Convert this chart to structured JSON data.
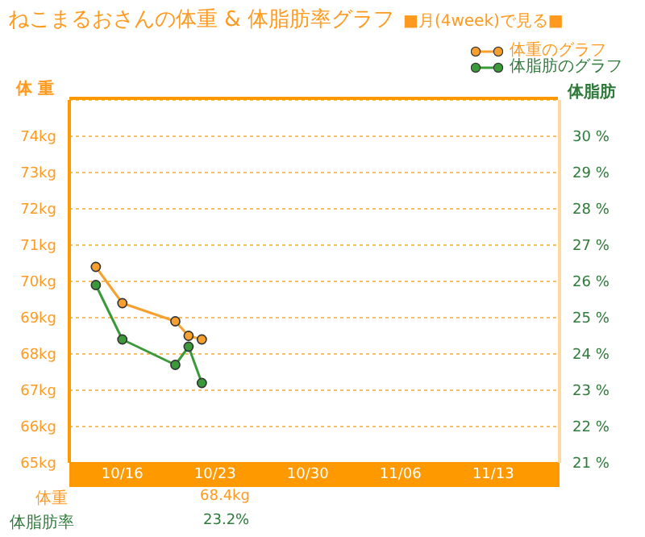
{
  "chart_data": {
    "type": "line",
    "title": "ねこまるおさんの体重 & 体脂肪率グラフ",
    "ylabel": "体 重",
    "y2label": "体脂肪",
    "x": [
      "--10-14",
      "--10-16",
      "--10-20",
      "--10-21",
      "--10-22"
    ],
    "series": [
      {
        "name": "体重のグラフ",
        "color": "#f7a030",
        "values": [
          70.4,
          69.4,
          68.9,
          68.5,
          68.4
        ]
      },
      {
        "name": "体脂肪のグラフ",
        "color": "#3a9a3a",
        "axis": "y2",
        "values": [
          25.9,
          24.4,
          23.7,
          24.2,
          23.2
        ]
      }
    ],
    "xlim": [
      "--10-12",
      "--11-18"
    ],
    "xticks": [
      {
        "value": "--10-16",
        "label": "10/16"
      },
      {
        "value": "--10-23",
        "label": "10/23"
      },
      {
        "value": "--10-30",
        "label": "10/30"
      },
      {
        "value": "--11-06",
        "label": "11/06"
      },
      {
        "value": "--11-13",
        "label": "11/13"
      }
    ],
    "ylim": [
      65,
      75
    ],
    "yticks": [
      {
        "value": 65,
        "label": "65kg"
      },
      {
        "value": 66,
        "label": "66kg"
      },
      {
        "value": 67,
        "label": "67kg"
      },
      {
        "value": 68,
        "label": "68kg"
      },
      {
        "value": 69,
        "label": "69kg"
      },
      {
        "value": 70,
        "label": "70kg"
      },
      {
        "value": 71,
        "label": "71kg"
      },
      {
        "value": 72,
        "label": "72kg"
      },
      {
        "value": 73,
        "label": "73kg"
      },
      {
        "value": 74,
        "label": "74kg"
      }
    ],
    "y2lim": [
      21,
      31
    ],
    "y2ticks": [
      {
        "value": 21,
        "label": "21 %"
      },
      {
        "value": 22,
        "label": "22 %"
      },
      {
        "value": 23,
        "label": "23 %"
      },
      {
        "value": 24,
        "label": "24 %"
      },
      {
        "value": 25,
        "label": "25 %"
      },
      {
        "value": 26,
        "label": "26 %"
      },
      {
        "value": 27,
        "label": "27 %"
      },
      {
        "value": 28,
        "label": "28 %"
      },
      {
        "value": 29,
        "label": "29 %"
      },
      {
        "value": 30,
        "label": "30 %"
      }
    ],
    "grid": "y",
    "legend": "top right",
    "marker": "circle",
    "line_style": "solid",
    "annotations": [
      "■月(4week)で見る■",
      "体重",
      "68.4kg",
      "体脂肪率",
      "23.2%"
    ]
  }
}
